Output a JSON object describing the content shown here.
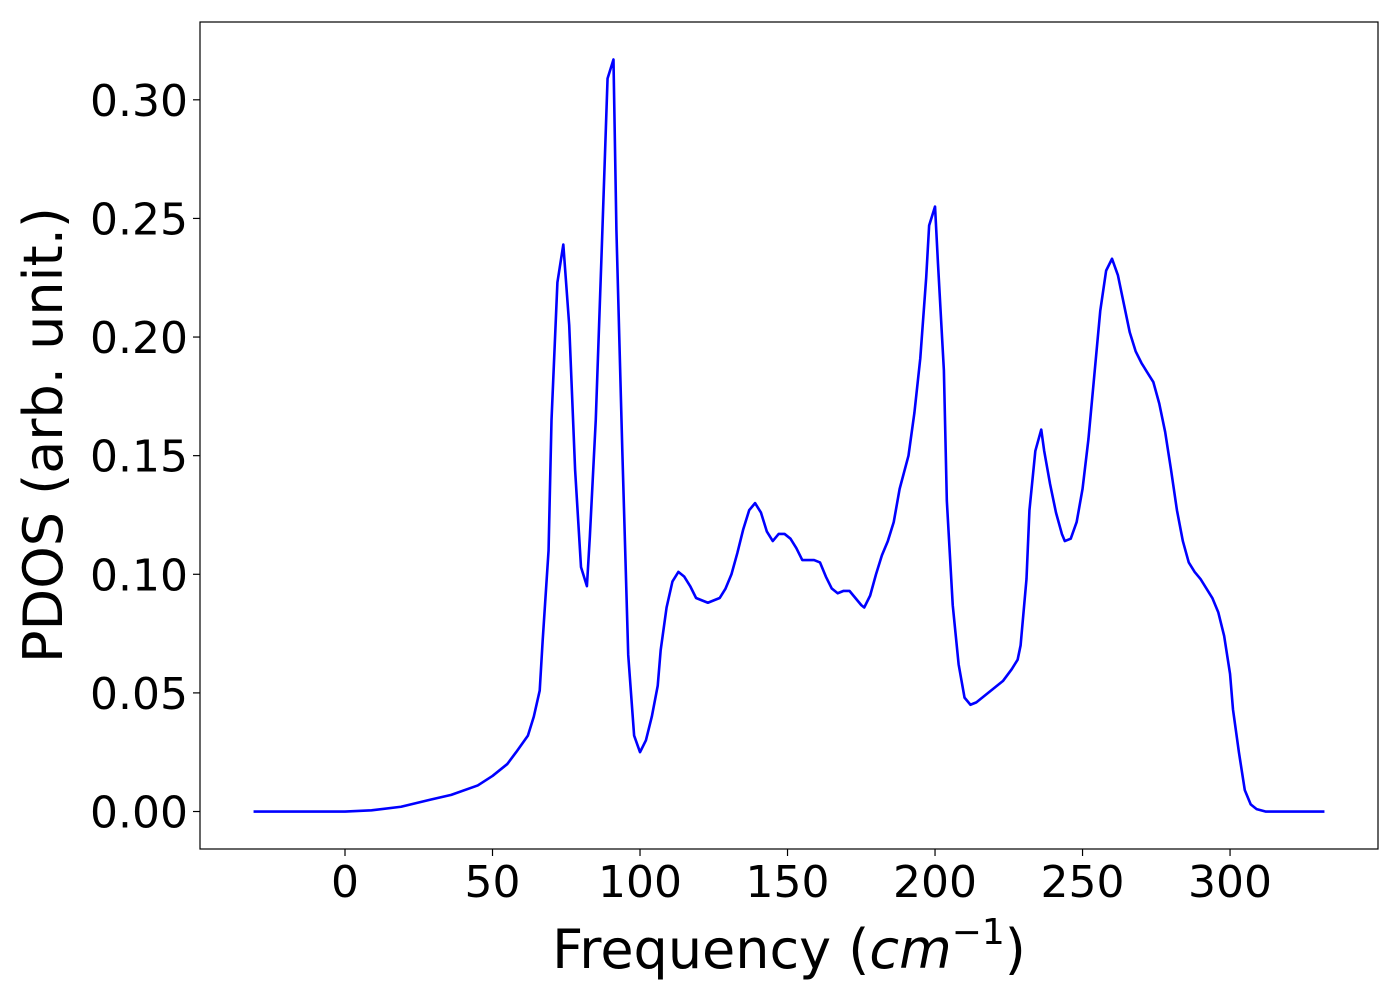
{
  "chart_data": {
    "type": "line",
    "xlabel": [
      "Frequency (",
      "cm",
      "−1",
      ")"
    ],
    "ylabel": "PDOS (arb. unit.)",
    "xlim": [
      -49.15,
      350.15
    ],
    "ylim": [
      -0.0158,
      0.3328
    ],
    "xticks": [
      0,
      50,
      100,
      150,
      200,
      250,
      300
    ],
    "yticks": [
      {
        "value": 0,
        "label": "0.00"
      },
      {
        "value": 0.05,
        "label": "0.05"
      },
      {
        "value": 0.1,
        "label": "0.10"
      },
      {
        "value": 0.15,
        "label": "0.15"
      },
      {
        "value": 0.2,
        "label": "0.20"
      },
      {
        "value": 0.25,
        "label": "0.25"
      },
      {
        "value": 0.3,
        "label": "0.30"
      }
    ],
    "x": [
      -31,
      0,
      9,
      19,
      29,
      36,
      45,
      50,
      55,
      58,
      62,
      64,
      66,
      67,
      69,
      70,
      72,
      74,
      76,
      78,
      80,
      82,
      83,
      85,
      87,
      89,
      91,
      92,
      94,
      96,
      98,
      100,
      102,
      104,
      106,
      107,
      109,
      111,
      113,
      115,
      117,
      119,
      121,
      123,
      125,
      127,
      129,
      131,
      133,
      135,
      137,
      139,
      141,
      143,
      145,
      147,
      149,
      151,
      153,
      155,
      157,
      159,
      161,
      163,
      165,
      167,
      169,
      171,
      173,
      175,
      176,
      178,
      180,
      182,
      184,
      186,
      188,
      191,
      193,
      195,
      197,
      198,
      200,
      201,
      203,
      204,
      206,
      208,
      210,
      212,
      214,
      218,
      223,
      226,
      228,
      229,
      231,
      232,
      234,
      236,
      237,
      239,
      241,
      243,
      244,
      246,
      248,
      250,
      252,
      254,
      256,
      258,
      260,
      262,
      264,
      266,
      268,
      270,
      272,
      274,
      276,
      278,
      280,
      282,
      284,
      286,
      288,
      290,
      292,
      294,
      296,
      298,
      300,
      301,
      303,
      305,
      307,
      309,
      312,
      332
    ],
    "series": [
      {
        "color": "#0000ff",
        "values": [
          0,
          0,
          0.0005,
          0.002,
          0.005,
          0.007,
          0.011,
          0.015,
          0.02,
          0.025,
          0.032,
          0.04,
          0.051,
          0.072,
          0.11,
          0.165,
          0.223,
          0.239,
          0.205,
          0.144,
          0.103,
          0.095,
          0.116,
          0.165,
          0.236,
          0.309,
          0.317,
          0.245,
          0.152,
          0.066,
          0.032,
          0.025,
          0.03,
          0.04,
          0.053,
          0.068,
          0.086,
          0.097,
          0.101,
          0.099,
          0.095,
          0.09,
          0.089,
          0.088,
          0.089,
          0.09,
          0.094,
          0.1,
          0.109,
          0.119,
          0.127,
          0.13,
          0.126,
          0.118,
          0.114,
          0.117,
          0.117,
          0.115,
          0.111,
          0.106,
          0.106,
          0.106,
          0.105,
          0.099,
          0.094,
          0.092,
          0.093,
          0.093,
          0.09,
          0.087,
          0.086,
          0.091,
          0.1,
          0.108,
          0.114,
          0.122,
          0.136,
          0.15,
          0.168,
          0.191,
          0.225,
          0.247,
          0.255,
          0.231,
          0.186,
          0.131,
          0.087,
          0.062,
          0.048,
          0.045,
          0.046,
          0.05,
          0.055,
          0.06,
          0.064,
          0.07,
          0.098,
          0.127,
          0.152,
          0.161,
          0.152,
          0.138,
          0.126,
          0.117,
          0.114,
          0.115,
          0.122,
          0.136,
          0.157,
          0.184,
          0.211,
          0.228,
          0.233,
          0.226,
          0.214,
          0.202,
          0.194,
          0.189,
          0.185,
          0.181,
          0.172,
          0.16,
          0.144,
          0.127,
          0.114,
          0.105,
          0.101,
          0.098,
          0.094,
          0.09,
          0.084,
          0.074,
          0.058,
          0.043,
          0.025,
          0.009,
          0.003,
          0.001,
          0,
          0
        ]
      }
    ]
  }
}
